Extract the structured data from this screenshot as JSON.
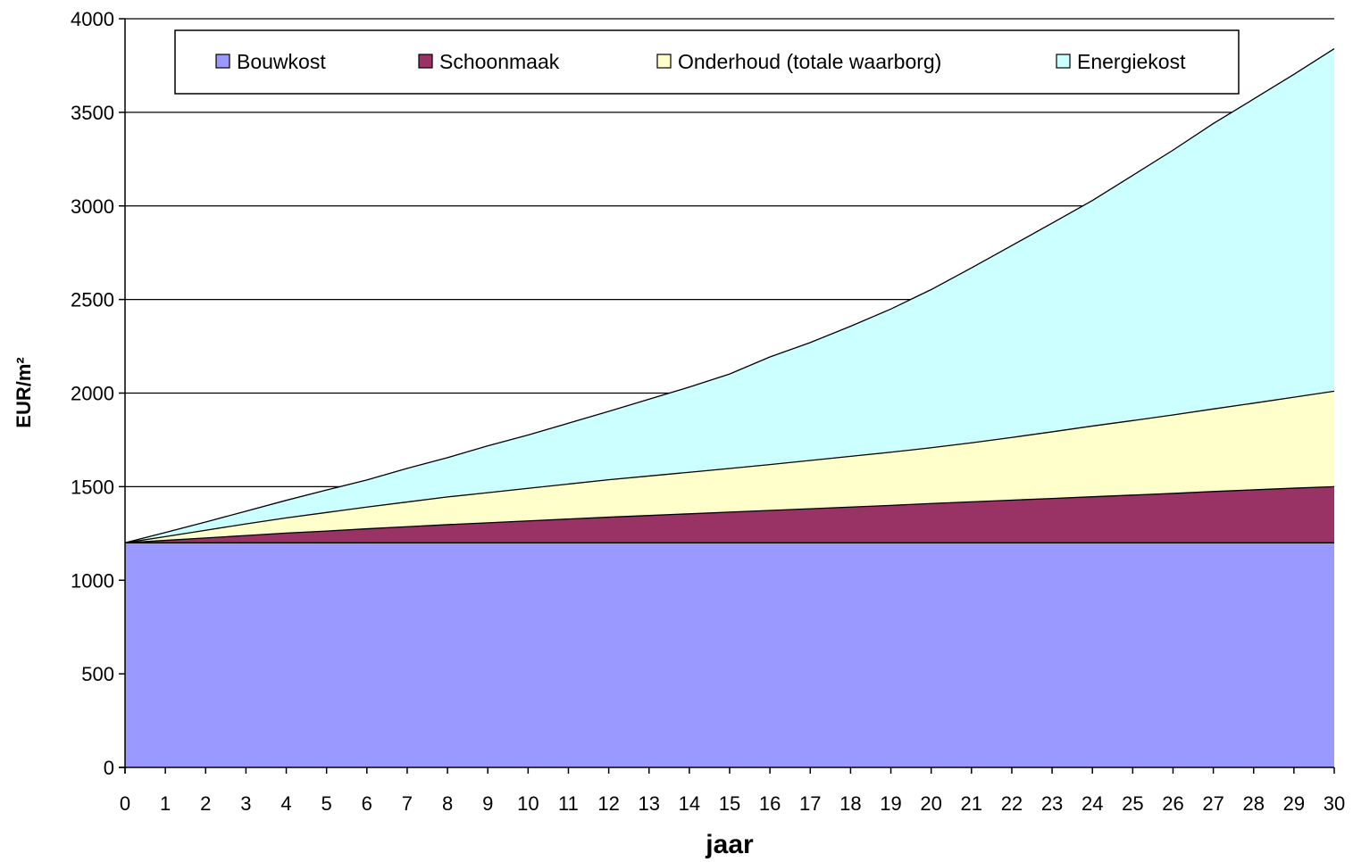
{
  "chart_data": {
    "type": "area",
    "stacked": true,
    "xlabel": "jaar",
    "ylabel": "EUR/m²",
    "ylim": [
      0,
      4000
    ],
    "yticks": [
      0,
      500,
      1000,
      1500,
      2000,
      2500,
      3000,
      3500,
      4000
    ],
    "x": [
      0,
      1,
      2,
      3,
      4,
      5,
      6,
      7,
      8,
      9,
      10,
      11,
      12,
      13,
      14,
      15,
      16,
      17,
      18,
      19,
      20,
      21,
      22,
      23,
      24,
      25,
      26,
      27,
      28,
      29,
      30
    ],
    "grid": "horizontal",
    "legend_position": "top",
    "series": [
      {
        "name": "Bouwkost",
        "color": "#9999ff",
        "values": [
          1200,
          1200,
          1200,
          1200,
          1200,
          1200,
          1200,
          1200,
          1200,
          1200,
          1200,
          1200,
          1200,
          1200,
          1200,
          1200,
          1200,
          1200,
          1200,
          1200,
          1200,
          1200,
          1200,
          1200,
          1200,
          1200,
          1200,
          1200,
          1200,
          1200,
          1200
        ]
      },
      {
        "name": "Schoonmaak",
        "color": "#993366",
        "values": [
          0,
          13,
          26,
          39,
          52,
          63,
          75,
          86,
          97,
          107,
          117,
          127,
          137,
          146,
          155,
          164,
          173,
          182,
          191,
          200,
          210,
          219,
          228,
          237,
          246,
          255,
          264,
          274,
          283,
          292,
          300
        ]
      },
      {
        "name": "Onderhoud (totale waarborg)",
        "color": "#ffffcc",
        "values": [
          0,
          20,
          41,
          62,
          81,
          99,
          116,
          132,
          148,
          161,
          174,
          187,
          200,
          211,
          222,
          233,
          245,
          258,
          271,
          284,
          298,
          315,
          335,
          356,
          378,
          398,
          419,
          441,
          463,
          486,
          510
        ]
      },
      {
        "name": "Energiekost",
        "color": "#ccffff",
        "values": [
          0,
          22,
          44,
          68,
          94,
          120,
          145,
          180,
          210,
          250,
          285,
          325,
          365,
          410,
          455,
          505,
          575,
          630,
          695,
          765,
          845,
          935,
          1025,
          1115,
          1205,
          1310,
          1415,
          1525,
          1625,
          1725,
          1830
        ]
      }
    ]
  }
}
